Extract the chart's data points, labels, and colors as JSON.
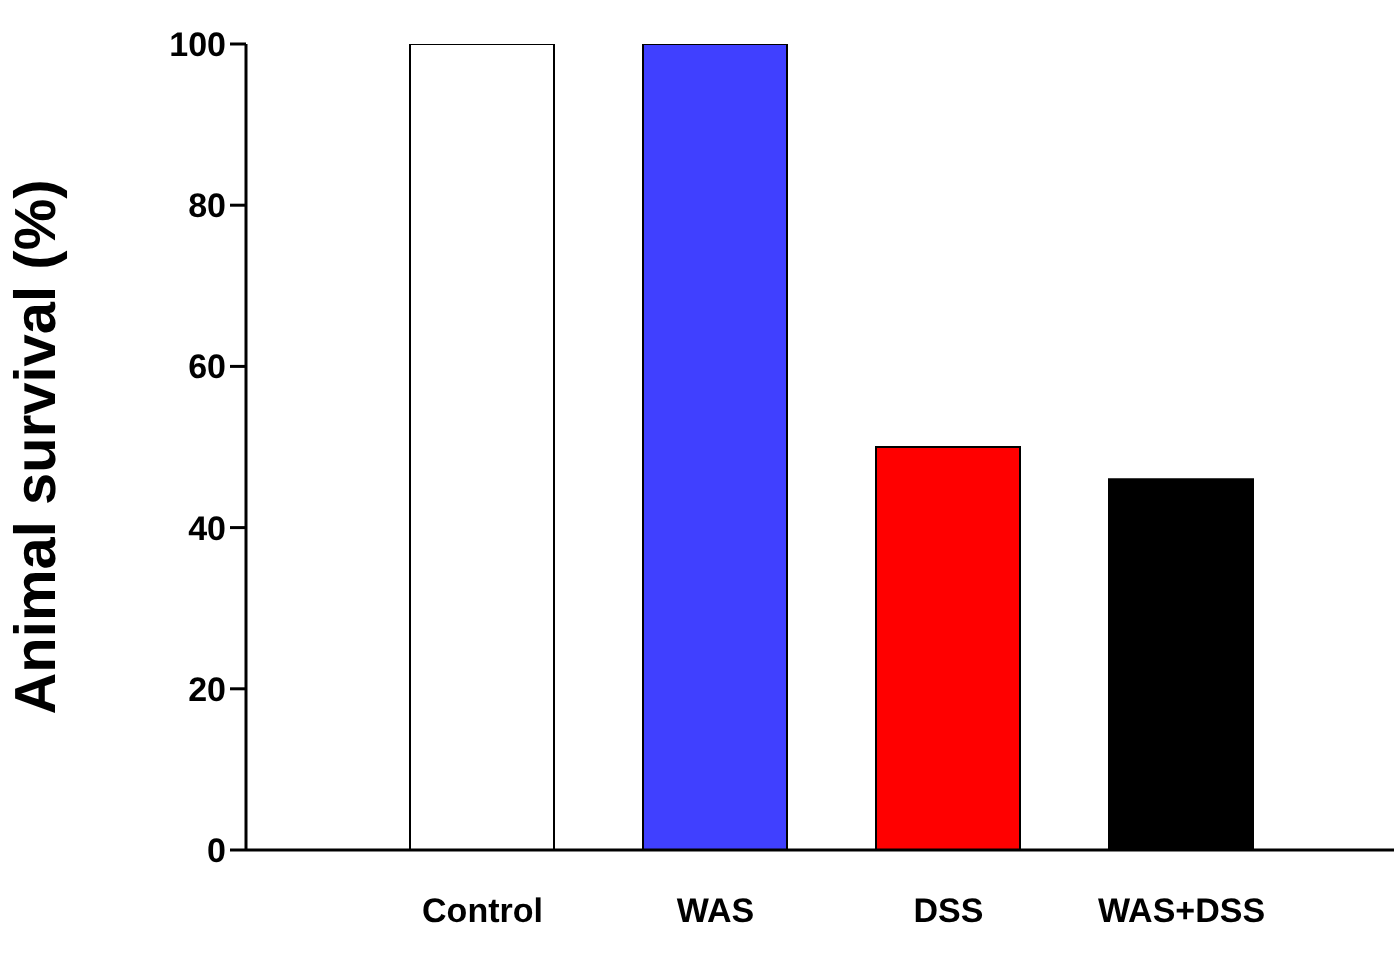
{
  "chart_data": {
    "type": "bar",
    "ylabel": "Animal survival (%)",
    "categories": [
      "Control",
      "WAS",
      "DSS",
      "WAS+DSS"
    ],
    "values": [
      100,
      100,
      50,
      46
    ],
    "colors": [
      "#ffffff",
      "#4040ff",
      "#ff0000",
      "#000000"
    ],
    "ylim": [
      0,
      100
    ],
    "yticks": [
      0,
      20,
      40,
      60,
      80,
      100
    ],
    "grid": false,
    "legend": false
  }
}
